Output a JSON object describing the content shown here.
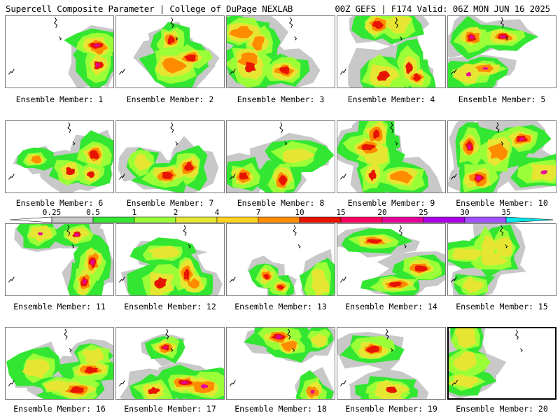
{
  "header": {
    "title": "Supercell Composite Parameter | College of DuPage NEXLAB",
    "run_info": "00Z GEFS | F174 Valid: 06Z MON JUN 16 2025"
  },
  "members": [
    {
      "label": "Ensemble Member: 1",
      "intensity": "high"
    },
    {
      "label": "Ensemble Member: 2",
      "intensity": "moderate"
    },
    {
      "label": "Ensemble Member: 3",
      "intensity": "moderate"
    },
    {
      "label": "Ensemble Member: 4",
      "intensity": "moderate"
    },
    {
      "label": "Ensemble Member: 5",
      "intensity": "high"
    },
    {
      "label": "Ensemble Member: 6",
      "intensity": "moderate"
    },
    {
      "label": "Ensemble Member: 7",
      "intensity": "moderate"
    },
    {
      "label": "Ensemble Member: 8",
      "intensity": "moderate"
    },
    {
      "label": "Ensemble Member: 9",
      "intensity": "moderate"
    },
    {
      "label": "Ensemble Member: 10",
      "intensity": "high"
    },
    {
      "label": "Ensemble Member: 11",
      "intensity": "high"
    },
    {
      "label": "Ensemble Member: 12",
      "intensity": "moderate"
    },
    {
      "label": "Ensemble Member: 13",
      "intensity": "moderate"
    },
    {
      "label": "Ensemble Member: 14",
      "intensity": "moderate"
    },
    {
      "label": "Ensemble Member: 15",
      "intensity": "low"
    },
    {
      "label": "Ensemble Member: 16",
      "intensity": "moderate"
    },
    {
      "label": "Ensemble Member: 17",
      "intensity": "high"
    },
    {
      "label": "Ensemble Member: 18",
      "intensity": "high"
    },
    {
      "label": "Ensemble Member: 19",
      "intensity": "moderate"
    },
    {
      "label": "Ensemble Member: 20",
      "intensity": "low",
      "selected": true
    }
  ],
  "colorbar": {
    "labels": [
      "0.25",
      "0.5",
      "1",
      "2",
      "4",
      "7",
      "10",
      "15",
      "20",
      "25",
      "30",
      "35"
    ],
    "colors": [
      "#c8c8c8",
      "#32e632",
      "#9bff37",
      "#e6e632",
      "#ffd21e",
      "#ff8c00",
      "#e61400",
      "#ff0064",
      "#e6009b",
      "#aa00e6",
      "#a050ff",
      "#00e6e6"
    ]
  },
  "colors": {
    "gray": "#c8c8c8",
    "green": "#32e632",
    "lightgreen": "#9bff37",
    "yellow": "#e6e632",
    "gold": "#ffd21e",
    "orange": "#ff8c00",
    "red": "#e61400",
    "pink": "#ff0064",
    "magenta": "#e6009b"
  }
}
